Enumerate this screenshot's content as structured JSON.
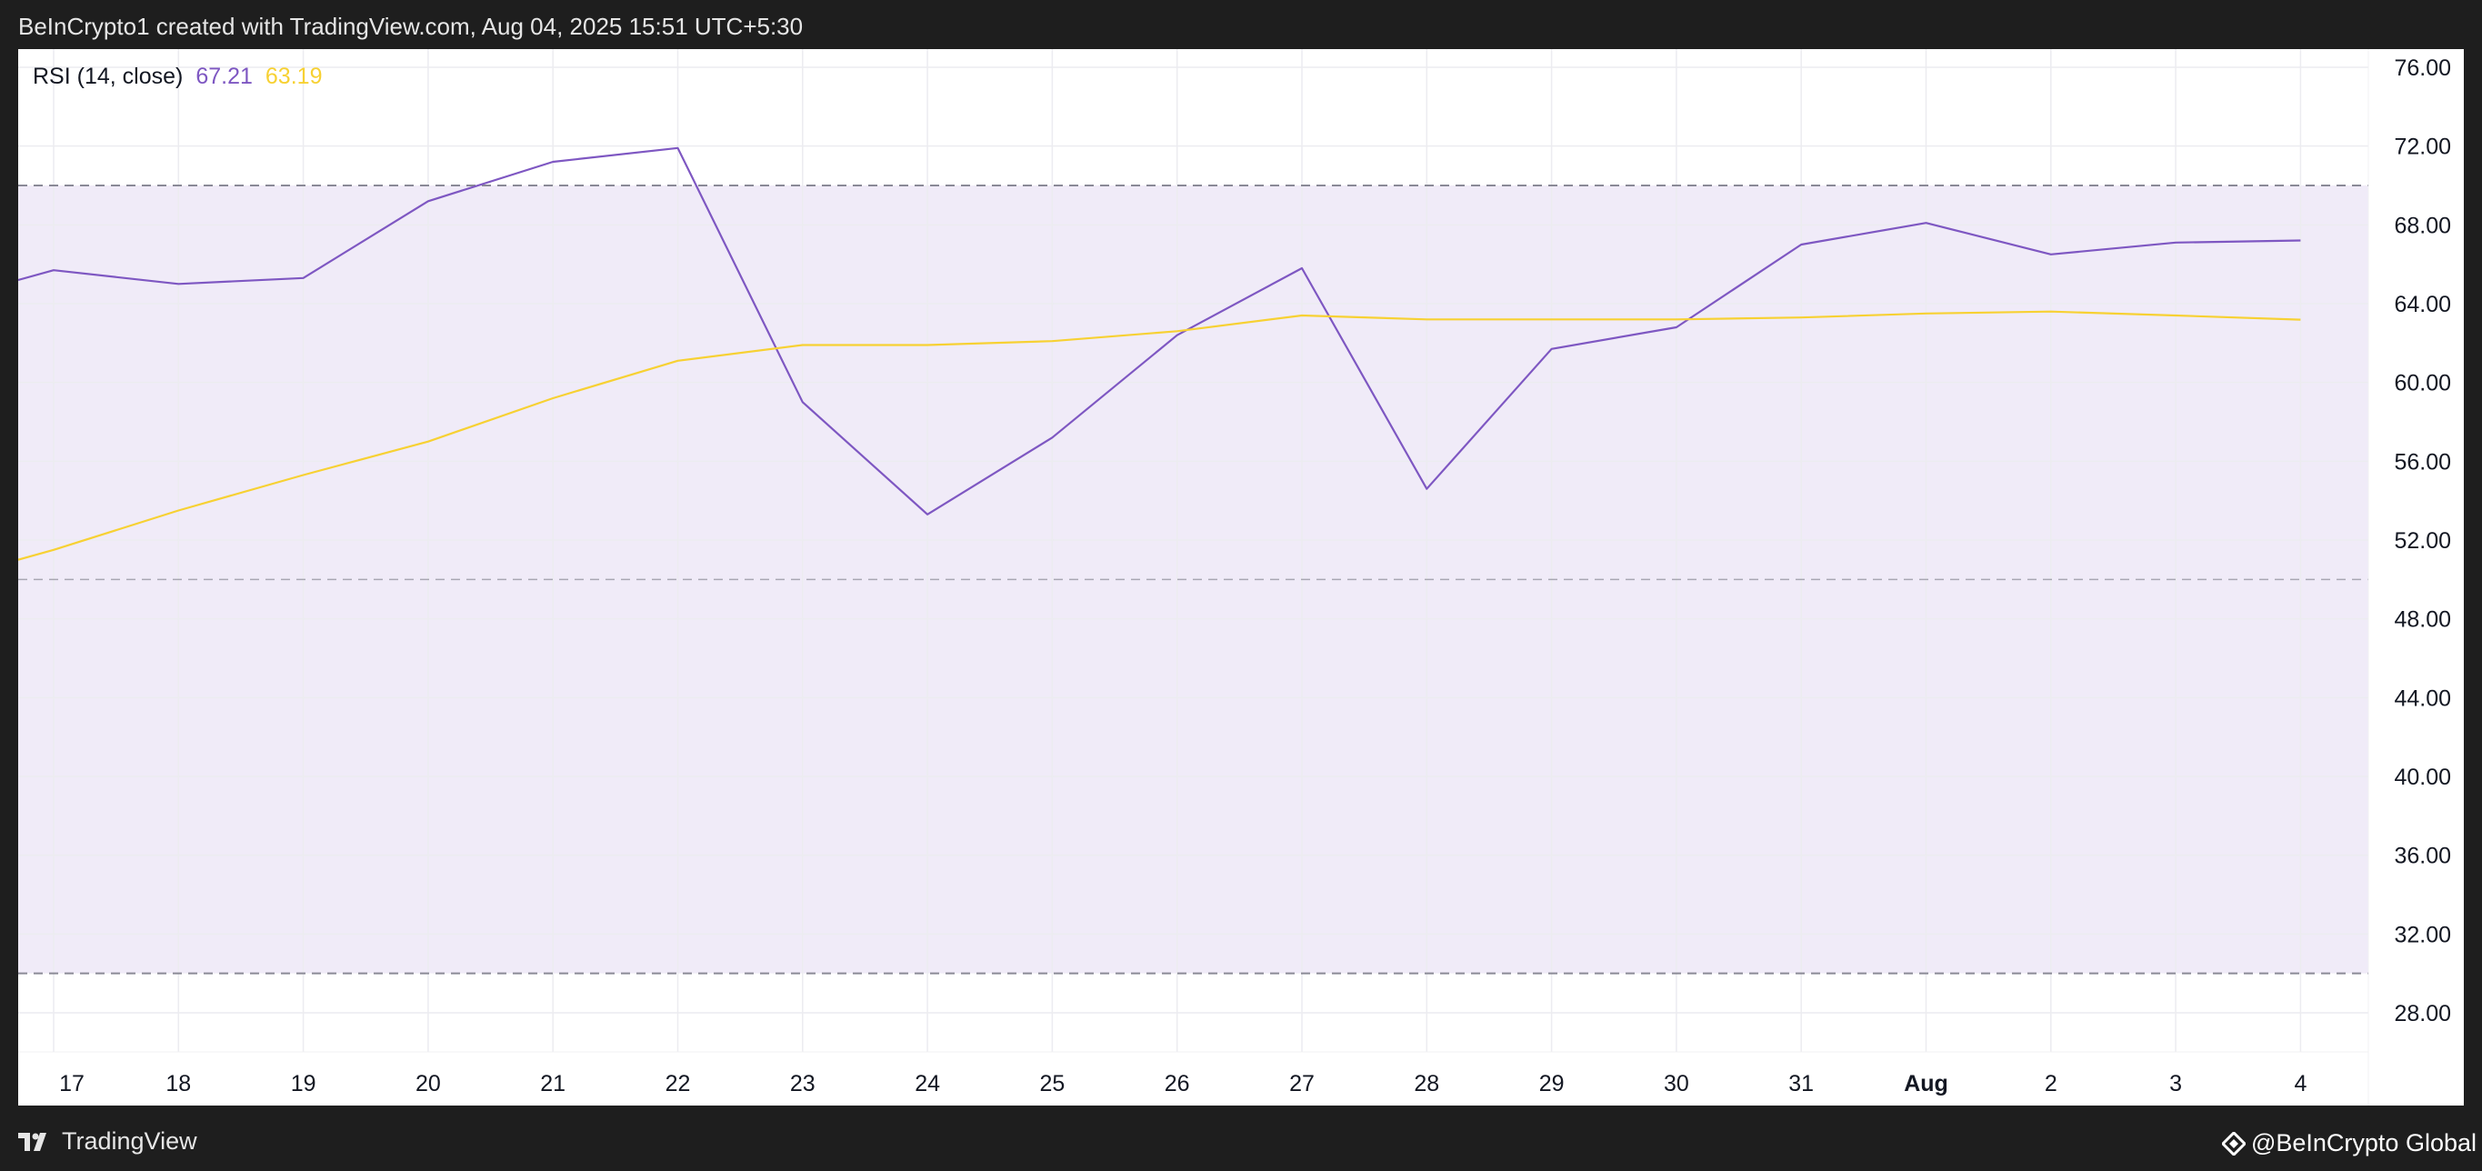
{
  "header": {
    "attribution": "BeInCrypto1 created with TradingView.com, Aug 04, 2025 15:51 UTC+5:30"
  },
  "legend": {
    "indicator": "RSI (14, close)",
    "rsi_value": "67.21",
    "ma_value": "63.19"
  },
  "footer": {
    "brand": "TradingView",
    "watermark": "@BeInCrypto Global"
  },
  "colors": {
    "rsi_line": "#7e57c2",
    "ma_line": "#f7d133",
    "band_fill": "#f0ebf8",
    "grid": "#ececf0",
    "dashed": "#8a8a96"
  },
  "chart_data": {
    "type": "line",
    "title": "",
    "xlabel": "",
    "ylabel": "",
    "x": [
      "17",
      "18",
      "19",
      "20",
      "21",
      "22",
      "23",
      "24",
      "25",
      "26",
      "27",
      "28",
      "29",
      "30",
      "31",
      "Aug",
      "2",
      "3",
      "4"
    ],
    "y_ticks": [
      "76.00",
      "72.00",
      "68.00",
      "64.00",
      "60.00",
      "56.00",
      "52.00",
      "48.00",
      "44.00",
      "40.00",
      "36.00",
      "32.00",
      "28.00"
    ],
    "ylim": [
      26.5,
      79.0
    ],
    "bands": {
      "upper": 70,
      "middle": 50,
      "lower": 30
    },
    "series": [
      {
        "key": "rsi",
        "start": 65.2,
        "values": [
          65.7,
          65.0,
          65.3,
          69.2,
          71.2,
          71.9,
          59.0,
          53.3,
          57.2,
          62.4,
          65.8,
          54.6,
          61.7,
          62.8,
          67.0,
          68.1,
          66.5,
          67.1,
          67.21
        ]
      },
      {
        "key": "rsi_ma",
        "start": 51.0,
        "values": [
          51.5,
          53.5,
          55.3,
          57.0,
          59.2,
          61.1,
          61.9,
          61.9,
          62.1,
          62.6,
          63.4,
          63.2,
          63.2,
          63.2,
          63.3,
          63.5,
          63.6,
          63.4,
          63.19
        ]
      }
    ],
    "grid": true,
    "legend_position": "top-left"
  }
}
